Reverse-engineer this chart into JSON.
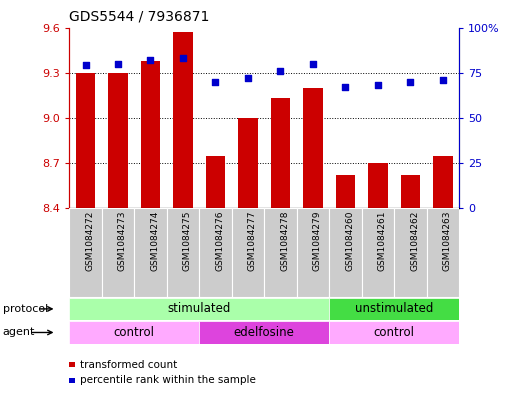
{
  "title": "GDS5544 / 7936871",
  "samples": [
    "GSM1084272",
    "GSM1084273",
    "GSM1084274",
    "GSM1084275",
    "GSM1084276",
    "GSM1084277",
    "GSM1084278",
    "GSM1084279",
    "GSM1084260",
    "GSM1084261",
    "GSM1084262",
    "GSM1084263"
  ],
  "bar_values": [
    9.3,
    9.3,
    9.38,
    9.57,
    8.75,
    9.0,
    9.13,
    9.2,
    8.62,
    8.7,
    8.62,
    8.75
  ],
  "scatter_values": [
    79,
    80,
    82,
    83,
    70,
    72,
    76,
    80,
    67,
    68,
    70,
    71
  ],
  "ylim_left": [
    8.4,
    9.6
  ],
  "ylim_right": [
    0,
    100
  ],
  "yticks_left": [
    8.4,
    8.7,
    9.0,
    9.3,
    9.6
  ],
  "yticks_right": [
    0,
    25,
    50,
    75,
    100
  ],
  "ytick_labels_right": [
    "0",
    "25",
    "50",
    "75",
    "100%"
  ],
  "bar_color": "#CC0000",
  "scatter_color": "#0000CC",
  "bar_width": 0.6,
  "protocol_labels": [
    {
      "text": "stimulated",
      "start": 0,
      "end": 7,
      "color": "#AAFFAA"
    },
    {
      "text": "unstimulated",
      "start": 8,
      "end": 11,
      "color": "#44DD44"
    }
  ],
  "agent_labels": [
    {
      "text": "control",
      "start": 0,
      "end": 3,
      "color": "#FFAAFF"
    },
    {
      "text": "edelfosine",
      "start": 4,
      "end": 7,
      "color": "#DD44DD"
    },
    {
      "text": "control",
      "start": 8,
      "end": 11,
      "color": "#FFAAFF"
    }
  ],
  "protocol_text": "protocol",
  "agent_text": "agent",
  "legend_bar_label": "transformed count",
  "legend_scatter_label": "percentile rank within the sample",
  "background_color": "#FFFFFF",
  "tick_label_color_left": "#CC0000",
  "tick_label_color_right": "#0000CC",
  "sample_bg_color": "#CCCCCC",
  "sample_border_color": "#AAAAAA"
}
